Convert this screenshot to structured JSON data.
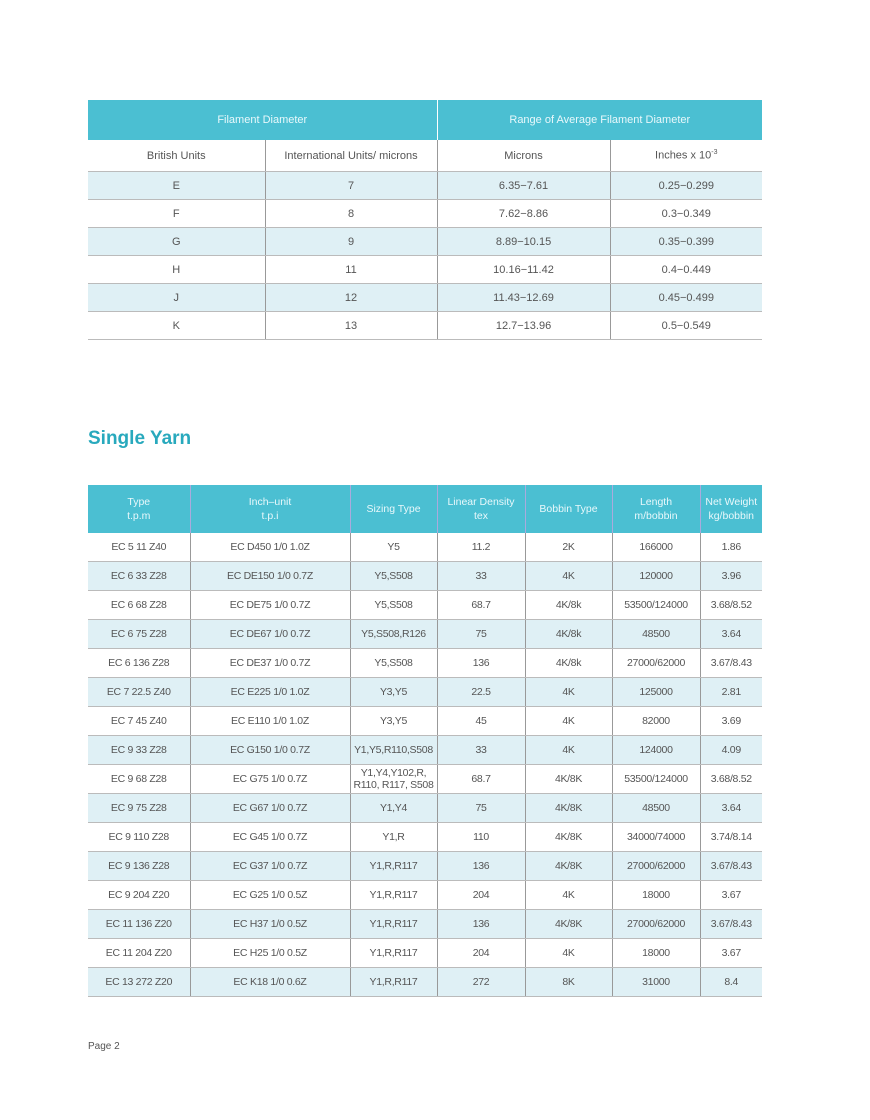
{
  "filament_table": {
    "group_headers": [
      "Filament Diameter",
      "Range of Average Filament Diameter"
    ],
    "sub_headers": [
      "British Units",
      "International Units/ microns",
      "Microns",
      "Inches x 10",
      "-3"
    ],
    "rows": [
      [
        "E",
        "7",
        "6.35−7.61",
        "0.25−0.299"
      ],
      [
        "F",
        "8",
        "7.62−8.86",
        "0.3−0.349"
      ],
      [
        "G",
        "9",
        "8.89−10.15",
        "0.35−0.399"
      ],
      [
        "H",
        "11",
        "10.16−11.42",
        "0.4−0.449"
      ],
      [
        "J",
        "12",
        "11.43−12.69",
        "0.45−0.499"
      ],
      [
        "K",
        "13",
        "12.7−13.96",
        "0.5−0.549"
      ]
    ]
  },
  "section_title": "Single Yarn",
  "yarn_table": {
    "headers": [
      [
        "Type",
        "t.p.m"
      ],
      [
        "Inch–unit",
        "t.p.i"
      ],
      [
        "Sizing Type",
        ""
      ],
      [
        "Linear Density",
        "tex"
      ],
      [
        "Bobbin Type",
        ""
      ],
      [
        "Length",
        "m/bobbin"
      ],
      [
        "Net Weight",
        "kg/bobbin"
      ]
    ],
    "rows": [
      [
        "EC 5 11 Z40",
        "EC D450 1/0 1.0Z",
        "Y5",
        "11.2",
        "2K",
        "166000",
        "1.86"
      ],
      [
        "EC 6 33 Z28",
        "EC DE150 1/0 0.7Z",
        "Y5,S508",
        "33",
        "4K",
        "120000",
        "3.96"
      ],
      [
        "EC 6 68 Z28",
        "EC DE75 1/0 0.7Z",
        "Y5,S508",
        "68.7",
        "4K/8k",
        "53500/124000",
        "3.68/8.52"
      ],
      [
        "EC 6 75 Z28",
        "EC DE67 1/0 0.7Z",
        "Y5,S508,R126",
        "75",
        "4K/8k",
        "48500",
        "3.64"
      ],
      [
        "EC 6 136 Z28",
        "EC DE37 1/0 0.7Z",
        "Y5,S508",
        "136",
        "4K/8k",
        "27000/62000",
        "3.67/8.43"
      ],
      [
        "EC 7 22.5 Z40",
        "EC E225 1/0 1.0Z",
        "Y3,Y5",
        "22.5",
        "4K",
        "125000",
        "2.81"
      ],
      [
        "EC 7 45 Z40",
        "EC E110 1/0 1.0Z",
        "Y3,Y5",
        "45",
        "4K",
        "82000",
        "3.69"
      ],
      [
        "EC 9 33 Z28",
        "EC G150 1/0 0.7Z",
        "Y1,Y5,R110,S508",
        "33",
        "4K",
        "124000",
        "4.09"
      ],
      [
        "EC 9 68 Z28",
        "EC G75 1/0 0.7Z",
        "Y1,Y4,Y102,R,\nR110, R117, S508",
        "68.7",
        "4K/8K",
        "53500/124000",
        "3.68/8.52"
      ],
      [
        "EC 9 75 Z28",
        "EC G67 1/0 0.7Z",
        "Y1,Y4",
        "75",
        "4K/8K",
        "48500",
        "3.64"
      ],
      [
        "EC 9 110 Z28",
        "EC G45 1/0 0.7Z",
        "Y1,R",
        "110",
        "4K/8K",
        "34000/74000",
        "3.74/8.14"
      ],
      [
        "EC 9 136 Z28",
        "EC G37 1/0 0.7Z",
        "Y1,R,R117",
        "136",
        "4K/8K",
        "27000/62000",
        "3.67/8.43"
      ],
      [
        "EC 9 204 Z20",
        "EC G25 1/0 0.5Z",
        "Y1,R,R117",
        "204",
        "4K",
        "18000",
        "3.67"
      ],
      [
        "EC 11 136 Z20",
        "EC H37 1/0 0.5Z",
        "Y1,R,R117",
        "136",
        "4K/8K",
        "27000/62000",
        "3.67/8.43"
      ],
      [
        "EC 11 204 Z20",
        "EC H25 1/0 0.5Z",
        "Y1,R,R117",
        "204",
        "4K",
        "18000",
        "3.67"
      ],
      [
        "EC 13 272 Z20",
        "EC K18 1/0 0.6Z",
        "Y1,R,R117",
        "272",
        "8K",
        "31000",
        "8.4"
      ]
    ]
  },
  "footer": {
    "page_label": "Page 2"
  },
  "colors": {
    "header_bg": "#4bbfd2",
    "stripe_bg": "#dff0f5",
    "title": "#28a9bd"
  }
}
